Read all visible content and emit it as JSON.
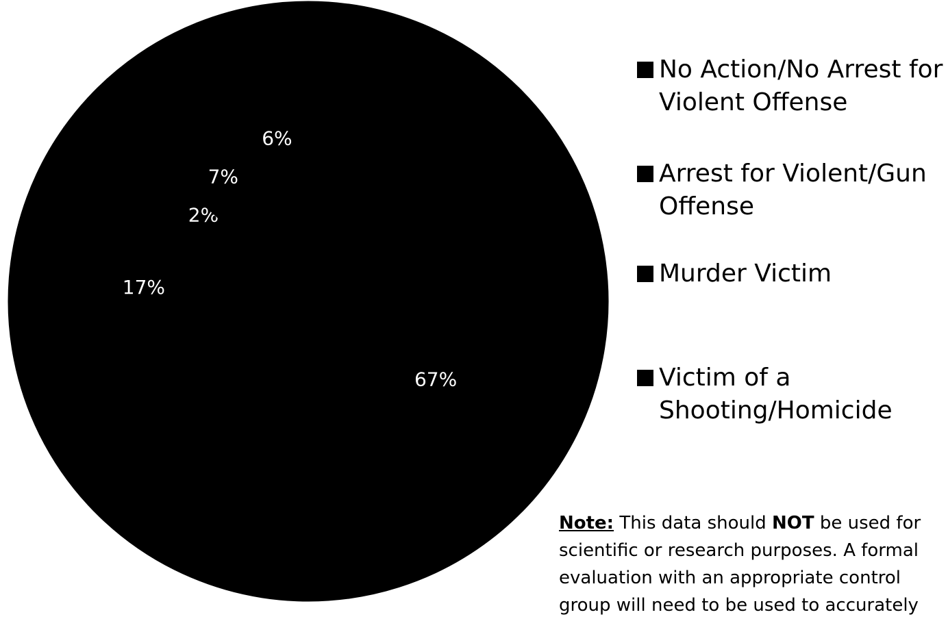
{
  "chart_data": {
    "type": "pie",
    "title": "",
    "slices": [
      {
        "name": "No Action/No Arrest for Violent Offense",
        "value": 67,
        "label": "67%"
      },
      {
        "name": "Arrest for Violent/Gun Offense",
        "value": 17,
        "label": "17%"
      },
      {
        "name": "Murder Victim",
        "value": 2,
        "label": "2%"
      },
      {
        "name": "Victim of a Shooting/Homicide",
        "value": 7,
        "label": "7%"
      },
      {
        "name": "",
        "value": 6,
        "label": "6%"
      }
    ],
    "colors": [
      "#000000",
      "#000000",
      "#000000",
      "#000000",
      "#000000"
    ],
    "legend_placement": "right",
    "legend": [
      "No Action/No Arrest for Violent Offense",
      "Arrest for Violent/Gun Offense",
      "Murder Victim",
      "Victim of a Shooting/Homicide"
    ]
  },
  "note": {
    "heading": "Note:",
    "text_before": " This data should ",
    "emphasis": "NOT",
    "text_after": " be used for scientific or research purposes. A formal evaluation with an appropriate control group will need to be used to accurately"
  }
}
